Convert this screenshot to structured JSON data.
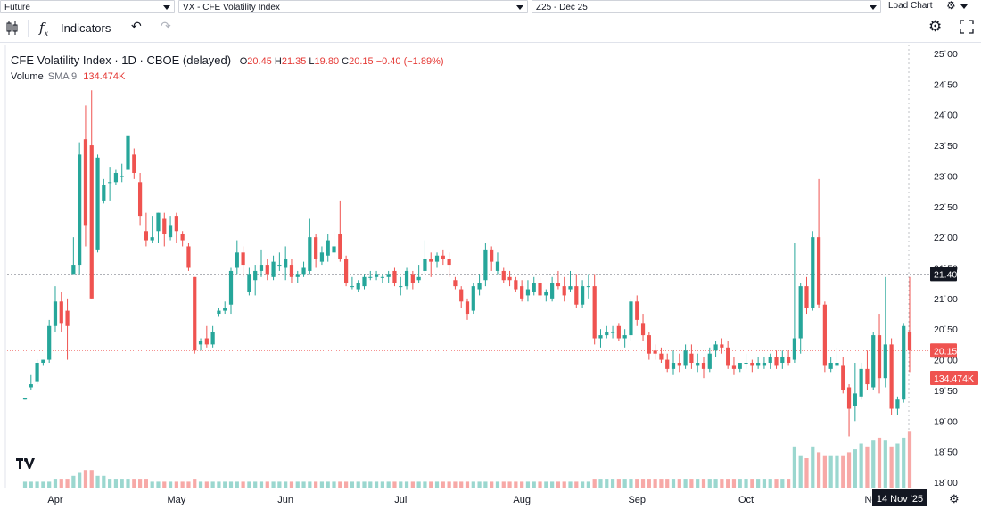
{
  "topbar": {
    "type_select": "Future",
    "symbol_select": "VX - CFE Volatility Index",
    "contract_select": "Z25 - Dec 25",
    "load_chart": "Load Chart"
  },
  "toolbar": {
    "indicators_label": "Indicators"
  },
  "legend": {
    "title": "CFE Volatility Index · 1D · CBOE (delayed)",
    "o_label": "O",
    "o_value": "20.45",
    "h_label": "H",
    "h_value": "21.35",
    "l_label": "L",
    "l_value": "19.80",
    "c_label": "C",
    "c_value": "20.15",
    "change": "−0.40 (−1.89%)",
    "volume_label": "Volume",
    "sma_label": "SMA 9",
    "volume_value": "134.474K"
  },
  "colors": {
    "up": "#26a69a",
    "down": "#ef5350",
    "vol_up": "#9bd7cf",
    "vol_down": "#f7a9a7",
    "price_tag": "#ef5350",
    "crosshair_tag": "#131722"
  },
  "chart_data": {
    "type": "candlestick",
    "title": "CFE Volatility Index · 1D · CBOE (delayed)",
    "y_ticks": [
      "25.00",
      "24.50",
      "24.00",
      "23.50",
      "23.00",
      "22.50",
      "22.00",
      "21.50",
      "21.00",
      "20.50",
      "20.00",
      "19.50",
      "19.00",
      "18.50",
      "18.00"
    ],
    "ylim": [
      17.95,
      25.1
    ],
    "x_ticks": [
      {
        "label": "Apr",
        "i": 5
      },
      {
        "label": "May",
        "i": 25
      },
      {
        "label": "Jun",
        "i": 43
      },
      {
        "label": "Jul",
        "i": 62
      },
      {
        "label": "Aug",
        "i": 82
      },
      {
        "label": "Sep",
        "i": 101
      },
      {
        "label": "Oct",
        "i": 119
      },
      {
        "label": "Nov",
        "i": 140
      }
    ],
    "crosshair_price": "21.40",
    "crosshair_price_value": 21.4,
    "last_price": "20.15",
    "last_price_value": 20.15,
    "volume_label_tag": "134.474K",
    "crosshair_date": "14 Nov '25",
    "candles": [
      {
        "o": 19.35,
        "h": 19.38,
        "l": 19.35,
        "c": 19.38,
        "v": 0.02
      },
      {
        "o": 19.55,
        "h": 19.75,
        "l": 19.5,
        "c": 19.6,
        "v": 0.02
      },
      {
        "o": 19.65,
        "h": 20.0,
        "l": 19.6,
        "c": 19.95,
        "v": 0.02
      },
      {
        "o": 19.95,
        "h": 20.0,
        "l": 19.9,
        "c": 20.0,
        "v": 0.02
      },
      {
        "o": 20.0,
        "h": 20.65,
        "l": 19.95,
        "c": 20.55,
        "v": 0.02
      },
      {
        "o": 20.55,
        "h": 21.2,
        "l": 20.45,
        "c": 20.95,
        "v": 0.03
      },
      {
        "o": 20.95,
        "h": 21.1,
        "l": 20.45,
        "c": 20.6,
        "v": 0.03
      },
      {
        "o": 20.8,
        "h": 21.0,
        "l": 20.0,
        "c": 20.55,
        "v": 0.03
      },
      {
        "o": 21.4,
        "h": 22.0,
        "l": 21.4,
        "c": 21.55,
        "v": 0.04
      },
      {
        "o": 21.55,
        "h": 23.55,
        "l": 21.4,
        "c": 23.35,
        "v": 0.05
      },
      {
        "o": 23.6,
        "h": 24.15,
        "l": 21.85,
        "c": 22.2,
        "v": 0.06
      },
      {
        "o": 23.5,
        "h": 24.4,
        "l": 21.0,
        "c": 21.0,
        "v": 0.06
      },
      {
        "o": 21.8,
        "h": 23.35,
        "l": 21.75,
        "c": 23.3,
        "v": 0.04
      },
      {
        "o": 22.6,
        "h": 22.95,
        "l": 22.55,
        "c": 22.85,
        "v": 0.04
      },
      {
        "o": 22.9,
        "h": 23.15,
        "l": 22.6,
        "c": 22.9,
        "v": 0.03
      },
      {
        "o": 22.9,
        "h": 23.1,
        "l": 22.85,
        "c": 23.05,
        "v": 0.03
      },
      {
        "o": 23.0,
        "h": 23.2,
        "l": 22.9,
        "c": 23.0,
        "v": 0.03
      },
      {
        "o": 23.1,
        "h": 23.7,
        "l": 23.0,
        "c": 23.65,
        "v": 0.03
      },
      {
        "o": 23.35,
        "h": 23.45,
        "l": 22.95,
        "c": 23.05,
        "v": 0.03
      },
      {
        "o": 22.9,
        "h": 23.05,
        "l": 22.2,
        "c": 22.35,
        "v": 0.03
      },
      {
        "o": 22.1,
        "h": 22.4,
        "l": 21.85,
        "c": 21.95,
        "v": 0.03
      },
      {
        "o": 21.95,
        "h": 22.35,
        "l": 21.9,
        "c": 22.0,
        "v": 0.02
      },
      {
        "o": 22.1,
        "h": 22.4,
        "l": 21.9,
        "c": 22.4,
        "v": 0.02
      },
      {
        "o": 22.3,
        "h": 22.4,
        "l": 21.85,
        "c": 22.05,
        "v": 0.02
      },
      {
        "o": 22.0,
        "h": 22.35,
        "l": 21.95,
        "c": 22.2,
        "v": 0.02
      },
      {
        "o": 22.35,
        "h": 22.4,
        "l": 21.9,
        "c": 22.1,
        "v": 0.02
      },
      {
        "o": 22.05,
        "h": 22.1,
        "l": 21.85,
        "c": 21.95,
        "v": 0.02
      },
      {
        "o": 21.85,
        "h": 21.9,
        "l": 21.45,
        "c": 21.5,
        "v": 0.02
      },
      {
        "o": 21.35,
        "h": 21.35,
        "l": 20.1,
        "c": 20.15,
        "v": 0.03
      },
      {
        "o": 20.25,
        "h": 20.35,
        "l": 20.15,
        "c": 20.3,
        "v": 0.02
      },
      {
        "o": 20.35,
        "h": 20.55,
        "l": 20.2,
        "c": 20.25,
        "v": 0.02
      },
      {
        "o": 20.25,
        "h": 20.55,
        "l": 20.2,
        "c": 20.45,
        "v": 0.02
      },
      {
        "o": 20.75,
        "h": 20.85,
        "l": 20.7,
        "c": 20.8,
        "v": 0.02
      },
      {
        "o": 20.8,
        "h": 20.95,
        "l": 20.75,
        "c": 20.85,
        "v": 0.02
      },
      {
        "o": 20.9,
        "h": 21.5,
        "l": 20.75,
        "c": 21.45,
        "v": 0.02
      },
      {
        "o": 21.5,
        "h": 21.95,
        "l": 21.4,
        "c": 21.75,
        "v": 0.02
      },
      {
        "o": 21.75,
        "h": 21.85,
        "l": 21.35,
        "c": 21.55,
        "v": 0.02
      },
      {
        "o": 21.1,
        "h": 21.5,
        "l": 21.05,
        "c": 21.4,
        "v": 0.02
      },
      {
        "o": 21.3,
        "h": 21.55,
        "l": 21.05,
        "c": 21.45,
        "v": 0.02
      },
      {
        "o": 21.45,
        "h": 21.8,
        "l": 21.35,
        "c": 21.55,
        "v": 0.02
      },
      {
        "o": 21.55,
        "h": 21.65,
        "l": 21.3,
        "c": 21.4,
        "v": 0.02
      },
      {
        "o": 21.35,
        "h": 21.7,
        "l": 21.3,
        "c": 21.6,
        "v": 0.02
      },
      {
        "o": 21.55,
        "h": 21.75,
        "l": 21.45,
        "c": 21.55,
        "v": 0.02
      },
      {
        "o": 21.5,
        "h": 21.85,
        "l": 21.3,
        "c": 21.65,
        "v": 0.02
      },
      {
        "o": 21.55,
        "h": 21.65,
        "l": 21.25,
        "c": 21.35,
        "v": 0.02
      },
      {
        "o": 21.35,
        "h": 21.45,
        "l": 21.25,
        "c": 21.4,
        "v": 0.02
      },
      {
        "o": 21.4,
        "h": 21.6,
        "l": 21.35,
        "c": 21.5,
        "v": 0.02
      },
      {
        "o": 21.45,
        "h": 22.3,
        "l": 21.4,
        "c": 22.0,
        "v": 0.02
      },
      {
        "o": 22.0,
        "h": 22.05,
        "l": 21.5,
        "c": 21.65,
        "v": 0.02
      },
      {
        "o": 21.6,
        "h": 21.85,
        "l": 21.55,
        "c": 21.75,
        "v": 0.02
      },
      {
        "o": 21.7,
        "h": 22.05,
        "l": 21.6,
        "c": 21.95,
        "v": 0.02
      },
      {
        "o": 21.75,
        "h": 22.1,
        "l": 21.65,
        "c": 21.85,
        "v": 0.02
      },
      {
        "o": 22.05,
        "h": 22.6,
        "l": 21.6,
        "c": 21.65,
        "v": 0.02
      },
      {
        "o": 21.65,
        "h": 21.7,
        "l": 21.2,
        "c": 21.25,
        "v": 0.02
      },
      {
        "o": 21.2,
        "h": 21.35,
        "l": 21.15,
        "c": 21.2,
        "v": 0.02
      },
      {
        "o": 21.15,
        "h": 21.3,
        "l": 21.1,
        "c": 21.25,
        "v": 0.02
      },
      {
        "o": 21.2,
        "h": 21.4,
        "l": 21.15,
        "c": 21.35,
        "v": 0.02
      },
      {
        "o": 21.35,
        "h": 21.45,
        "l": 21.3,
        "c": 21.35,
        "v": 0.02
      },
      {
        "o": 21.35,
        "h": 21.45,
        "l": 21.3,
        "c": 21.4,
        "v": 0.02
      },
      {
        "o": 21.35,
        "h": 21.4,
        "l": 21.25,
        "c": 21.35,
        "v": 0.02
      },
      {
        "o": 21.35,
        "h": 21.45,
        "l": 21.25,
        "c": 21.4,
        "v": 0.02
      },
      {
        "o": 21.45,
        "h": 21.5,
        "l": 21.2,
        "c": 21.25,
        "v": 0.02
      },
      {
        "o": 21.2,
        "h": 21.35,
        "l": 21.05,
        "c": 21.2,
        "v": 0.02
      },
      {
        "o": 21.2,
        "h": 21.5,
        "l": 21.15,
        "c": 21.45,
        "v": 0.02
      },
      {
        "o": 21.4,
        "h": 21.45,
        "l": 21.15,
        "c": 21.25,
        "v": 0.02
      },
      {
        "o": 21.3,
        "h": 21.55,
        "l": 21.25,
        "c": 21.35,
        "v": 0.02
      },
      {
        "o": 21.45,
        "h": 21.95,
        "l": 21.4,
        "c": 21.65,
        "v": 0.02
      },
      {
        "o": 21.65,
        "h": 21.75,
        "l": 21.35,
        "c": 21.6,
        "v": 0.02
      },
      {
        "o": 21.6,
        "h": 21.75,
        "l": 21.5,
        "c": 21.7,
        "v": 0.02
      },
      {
        "o": 21.7,
        "h": 21.8,
        "l": 21.55,
        "c": 21.65,
        "v": 0.02
      },
      {
        "o": 21.65,
        "h": 21.75,
        "l": 21.35,
        "c": 21.55,
        "v": 0.02
      },
      {
        "o": 21.3,
        "h": 21.35,
        "l": 21.15,
        "c": 21.2,
        "v": 0.02
      },
      {
        "o": 21.15,
        "h": 21.2,
        "l": 20.85,
        "c": 20.95,
        "v": 0.02
      },
      {
        "o": 20.95,
        "h": 21.0,
        "l": 20.65,
        "c": 20.75,
        "v": 0.02
      },
      {
        "o": 20.8,
        "h": 21.25,
        "l": 20.75,
        "c": 21.2,
        "v": 0.02
      },
      {
        "o": 21.15,
        "h": 21.4,
        "l": 21.05,
        "c": 21.25,
        "v": 0.02
      },
      {
        "o": 21.3,
        "h": 21.9,
        "l": 21.2,
        "c": 21.8,
        "v": 0.02
      },
      {
        "o": 21.8,
        "h": 21.85,
        "l": 21.45,
        "c": 21.6,
        "v": 0.02
      },
      {
        "o": 21.45,
        "h": 21.75,
        "l": 21.4,
        "c": 21.6,
        "v": 0.02
      },
      {
        "o": 21.45,
        "h": 21.5,
        "l": 21.25,
        "c": 21.3,
        "v": 0.02
      },
      {
        "o": 21.35,
        "h": 21.45,
        "l": 21.2,
        "c": 21.3,
        "v": 0.02
      },
      {
        "o": 21.3,
        "h": 21.35,
        "l": 21.1,
        "c": 21.15,
        "v": 0.02
      },
      {
        "o": 21.2,
        "h": 21.3,
        "l": 20.95,
        "c": 21.0,
        "v": 0.02
      },
      {
        "o": 21.05,
        "h": 21.3,
        "l": 20.95,
        "c": 21.15,
        "v": 0.02
      },
      {
        "o": 21.1,
        "h": 21.35,
        "l": 21.05,
        "c": 21.25,
        "v": 0.02
      },
      {
        "o": 21.25,
        "h": 21.35,
        "l": 21.0,
        "c": 21.05,
        "v": 0.02
      },
      {
        "o": 21.05,
        "h": 21.15,
        "l": 20.95,
        "c": 21.1,
        "v": 0.02
      },
      {
        "o": 21.0,
        "h": 21.35,
        "l": 20.95,
        "c": 21.25,
        "v": 0.02
      },
      {
        "o": 21.25,
        "h": 21.45,
        "l": 21.15,
        "c": 21.2,
        "v": 0.02
      },
      {
        "o": 21.2,
        "h": 21.35,
        "l": 20.95,
        "c": 21.05,
        "v": 0.02
      },
      {
        "o": 21.15,
        "h": 21.45,
        "l": 21.1,
        "c": 21.2,
        "v": 0.02
      },
      {
        "o": 21.2,
        "h": 21.4,
        "l": 20.85,
        "c": 20.9,
        "v": 0.02
      },
      {
        "o": 20.9,
        "h": 21.3,
        "l": 20.85,
        "c": 21.2,
        "v": 0.02
      },
      {
        "o": 21.2,
        "h": 21.4,
        "l": 21.0,
        "c": 21.2,
        "v": 0.02
      },
      {
        "o": 21.2,
        "h": 21.4,
        "l": 20.25,
        "c": 20.35,
        "v": 0.03
      },
      {
        "o": 20.35,
        "h": 20.5,
        "l": 20.2,
        "c": 20.4,
        "v": 0.03
      },
      {
        "o": 20.4,
        "h": 20.55,
        "l": 20.35,
        "c": 20.45,
        "v": 0.03
      },
      {
        "o": 20.45,
        "h": 20.55,
        "l": 20.35,
        "c": 20.45,
        "v": 0.03
      },
      {
        "o": 20.55,
        "h": 20.6,
        "l": 20.3,
        "c": 20.35,
        "v": 0.03
      },
      {
        "o": 20.35,
        "h": 20.5,
        "l": 20.2,
        "c": 20.4,
        "v": 0.03
      },
      {
        "o": 20.4,
        "h": 21.0,
        "l": 20.3,
        "c": 20.95,
        "v": 0.03
      },
      {
        "o": 20.95,
        "h": 21.05,
        "l": 20.55,
        "c": 20.65,
        "v": 0.03
      },
      {
        "o": 20.6,
        "h": 20.75,
        "l": 20.3,
        "c": 20.4,
        "v": 0.03
      },
      {
        "o": 20.4,
        "h": 20.45,
        "l": 20.0,
        "c": 20.1,
        "v": 0.03
      },
      {
        "o": 20.15,
        "h": 20.25,
        "l": 20.0,
        "c": 20.1,
        "v": 0.03
      },
      {
        "o": 20.1,
        "h": 20.2,
        "l": 19.95,
        "c": 20.0,
        "v": 0.03
      },
      {
        "o": 20.0,
        "h": 20.1,
        "l": 19.8,
        "c": 19.85,
        "v": 0.03
      },
      {
        "o": 19.85,
        "h": 20.15,
        "l": 19.75,
        "c": 19.95,
        "v": 0.03
      },
      {
        "o": 19.95,
        "h": 20.1,
        "l": 19.8,
        "c": 19.9,
        "v": 0.03
      },
      {
        "o": 19.9,
        "h": 20.25,
        "l": 19.85,
        "c": 20.15,
        "v": 0.03
      },
      {
        "o": 20.1,
        "h": 20.25,
        "l": 19.85,
        "c": 19.95,
        "v": 0.03
      },
      {
        "o": 19.9,
        "h": 20.1,
        "l": 19.8,
        "c": 19.95,
        "v": 0.03
      },
      {
        "o": 19.95,
        "h": 20.05,
        "l": 19.7,
        "c": 19.85,
        "v": 0.03
      },
      {
        "o": 19.85,
        "h": 20.2,
        "l": 19.8,
        "c": 20.1,
        "v": 0.03
      },
      {
        "o": 20.15,
        "h": 20.3,
        "l": 20.05,
        "c": 20.25,
        "v": 0.03
      },
      {
        "o": 20.25,
        "h": 20.35,
        "l": 20.1,
        "c": 20.2,
        "v": 0.03
      },
      {
        "o": 20.2,
        "h": 20.3,
        "l": 19.85,
        "c": 19.9,
        "v": 0.03
      },
      {
        "o": 19.9,
        "h": 20.05,
        "l": 19.75,
        "c": 19.85,
        "v": 0.03
      },
      {
        "o": 19.85,
        "h": 19.95,
        "l": 19.8,
        "c": 19.95,
        "v": 0.03
      },
      {
        "o": 19.95,
        "h": 20.1,
        "l": 19.85,
        "c": 19.95,
        "v": 0.03
      },
      {
        "o": 19.95,
        "h": 20.0,
        "l": 19.8,
        "c": 19.9,
        "v": 0.03
      },
      {
        "o": 19.9,
        "h": 20.05,
        "l": 19.85,
        "c": 19.95,
        "v": 0.03
      },
      {
        "o": 19.9,
        "h": 20.05,
        "l": 19.85,
        "c": 19.95,
        "v": 0.03
      },
      {
        "o": 19.95,
        "h": 20.1,
        "l": 19.85,
        "c": 20.05,
        "v": 0.03
      },
      {
        "o": 20.05,
        "h": 20.15,
        "l": 19.85,
        "c": 19.9,
        "v": 0.03
      },
      {
        "o": 19.95,
        "h": 20.15,
        "l": 19.85,
        "c": 20.05,
        "v": 0.03
      },
      {
        "o": 20.05,
        "h": 20.15,
        "l": 19.9,
        "c": 19.95,
        "v": 0.03
      },
      {
        "o": 20.0,
        "h": 21.9,
        "l": 19.95,
        "c": 20.35,
        "v": 0.14
      },
      {
        "o": 20.35,
        "h": 21.25,
        "l": 20.1,
        "c": 21.2,
        "v": 0.11
      },
      {
        "o": 21.2,
        "h": 21.35,
        "l": 20.75,
        "c": 20.85,
        "v": 0.1
      },
      {
        "o": 20.85,
        "h": 22.1,
        "l": 20.8,
        "c": 22.0,
        "v": 0.14
      },
      {
        "o": 22.0,
        "h": 22.95,
        "l": 20.85,
        "c": 20.9,
        "v": 0.12
      },
      {
        "o": 20.9,
        "h": 20.95,
        "l": 19.8,
        "c": 19.9,
        "v": 0.11
      },
      {
        "o": 19.85,
        "h": 20.05,
        "l": 19.8,
        "c": 19.95,
        "v": 0.11
      },
      {
        "o": 19.9,
        "h": 20.2,
        "l": 19.85,
        "c": 19.95,
        "v": 0.11
      },
      {
        "o": 19.9,
        "h": 20.05,
        "l": 19.45,
        "c": 19.5,
        "v": 0.11
      },
      {
        "o": 19.55,
        "h": 19.6,
        "l": 18.75,
        "c": 19.2,
        "v": 0.12
      },
      {
        "o": 19.25,
        "h": 19.95,
        "l": 19.0,
        "c": 19.45,
        "v": 0.13
      },
      {
        "o": 19.4,
        "h": 19.95,
        "l": 19.35,
        "c": 19.85,
        "v": 0.15
      },
      {
        "o": 19.85,
        "h": 20.15,
        "l": 19.5,
        "c": 19.6,
        "v": 0.14
      },
      {
        "o": 19.55,
        "h": 20.45,
        "l": 19.5,
        "c": 20.4,
        "v": 0.16
      },
      {
        "o": 20.4,
        "h": 20.75,
        "l": 19.45,
        "c": 19.7,
        "v": 0.17
      },
      {
        "o": 19.7,
        "h": 21.35,
        "l": 19.55,
        "c": 20.25,
        "v": 0.16
      },
      {
        "o": 20.25,
        "h": 20.35,
        "l": 19.1,
        "c": 19.2,
        "v": 0.14
      },
      {
        "o": 19.2,
        "h": 19.4,
        "l": 19.1,
        "c": 19.35,
        "v": 0.15
      },
      {
        "o": 19.35,
        "h": 20.6,
        "l": 19.3,
        "c": 20.55,
        "v": 0.17
      },
      {
        "o": 20.45,
        "h": 21.35,
        "l": 19.8,
        "c": 20.15,
        "v": 0.19
      }
    ]
  }
}
